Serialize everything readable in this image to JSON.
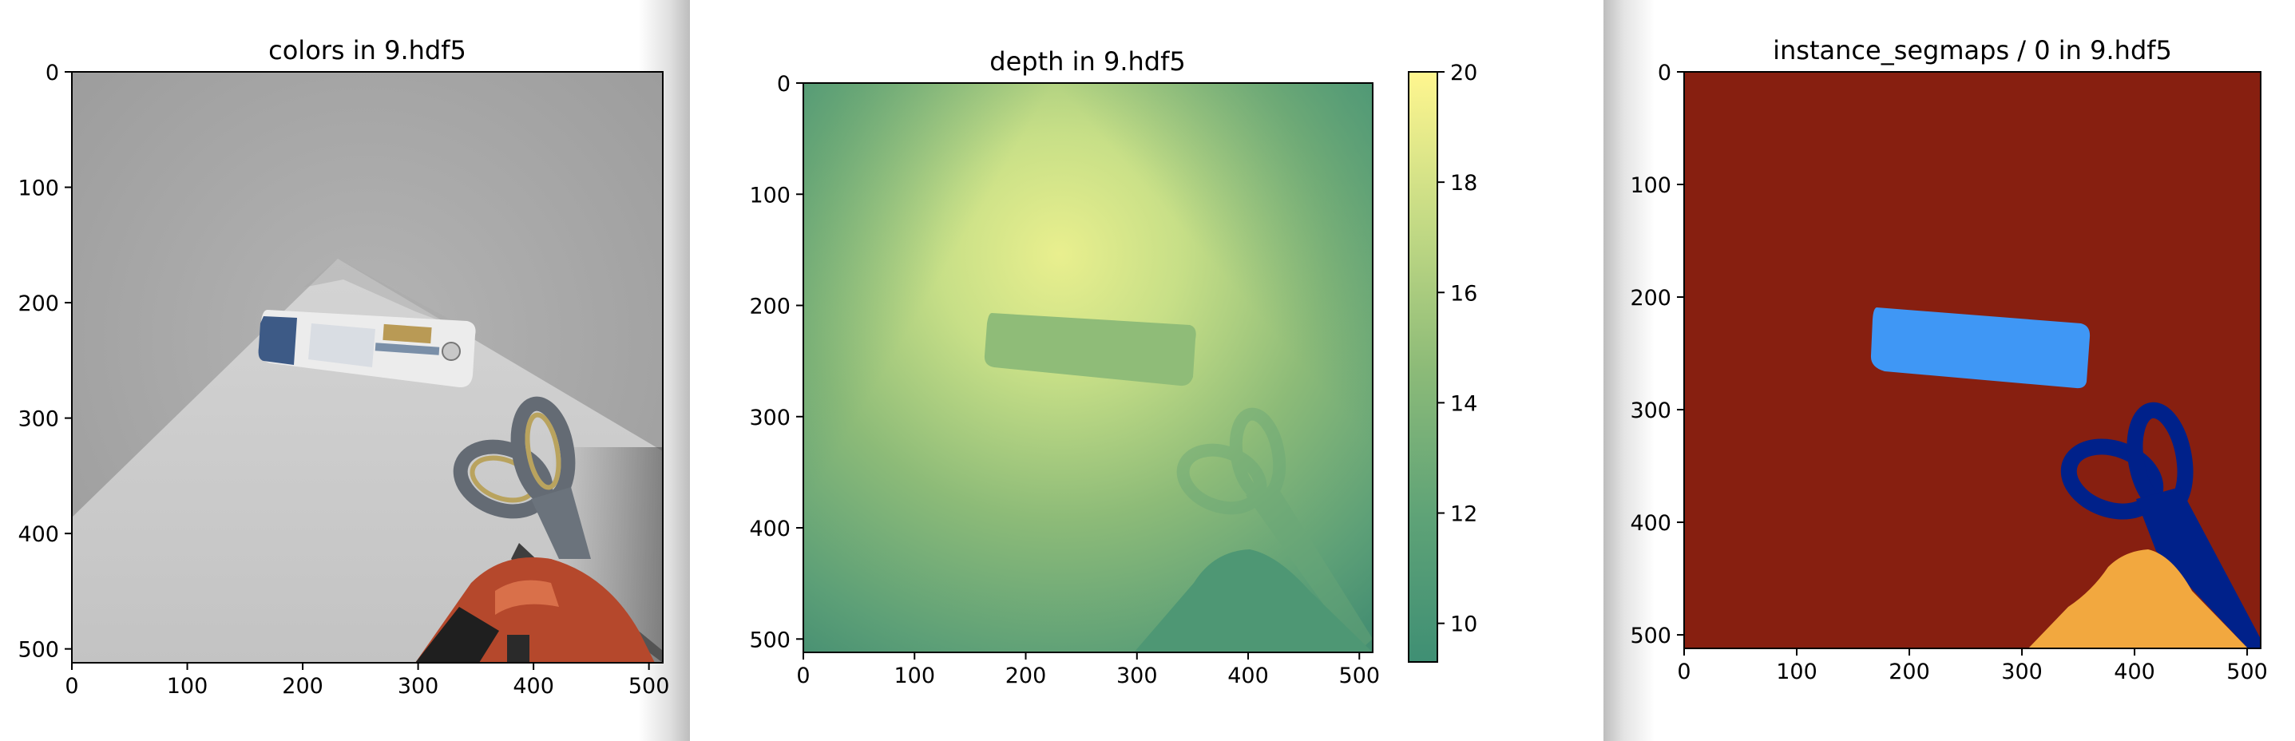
{
  "chart_data": [
    {
      "type": "image",
      "title": "colors in 9.hdf5",
      "x_ticks": [
        "0",
        "100",
        "200",
        "300",
        "400",
        "500"
      ],
      "y_ticks": [
        "0",
        "100",
        "200",
        "300",
        "400",
        "500"
      ],
      "xlim": [
        0,
        512
      ],
      "ylim": [
        512,
        0
      ],
      "colors": {
        "paper": "#c9c9c9",
        "background": "#acacac"
      },
      "objects": [
        "shampoo-bottle",
        "scissors",
        "drill"
      ]
    },
    {
      "type": "heatmap",
      "title": "depth in 9.hdf5",
      "x_ticks": [
        "0",
        "100",
        "200",
        "300",
        "400",
        "500"
      ],
      "y_ticks": [
        "0",
        "100",
        "200",
        "300",
        "400",
        "500"
      ],
      "xlim": [
        0,
        512
      ],
      "ylim": [
        512,
        0
      ],
      "colorbar": {
        "min": 9.3,
        "max": 20,
        "ticks": [
          "10",
          "12",
          "14",
          "16",
          "18",
          "20"
        ]
      },
      "colors": {
        "low": "#3f8f74",
        "mid": "#8dbb78",
        "high": "#fff68f"
      }
    },
    {
      "type": "heatmap",
      "title": "instance_segmaps / 0 in 9.hdf5",
      "x_ticks": [
        "0",
        "100",
        "200",
        "300",
        "400",
        "500"
      ],
      "y_ticks": [
        "0",
        "100",
        "200",
        "300",
        "400",
        "500"
      ],
      "xlim": [
        0,
        512
      ],
      "ylim": [
        512,
        0
      ],
      "colors": {
        "background": "#871f10",
        "bottle": "#3f97f5",
        "scissors": "#00218a",
        "drill": "#f2a83f"
      }
    }
  ]
}
